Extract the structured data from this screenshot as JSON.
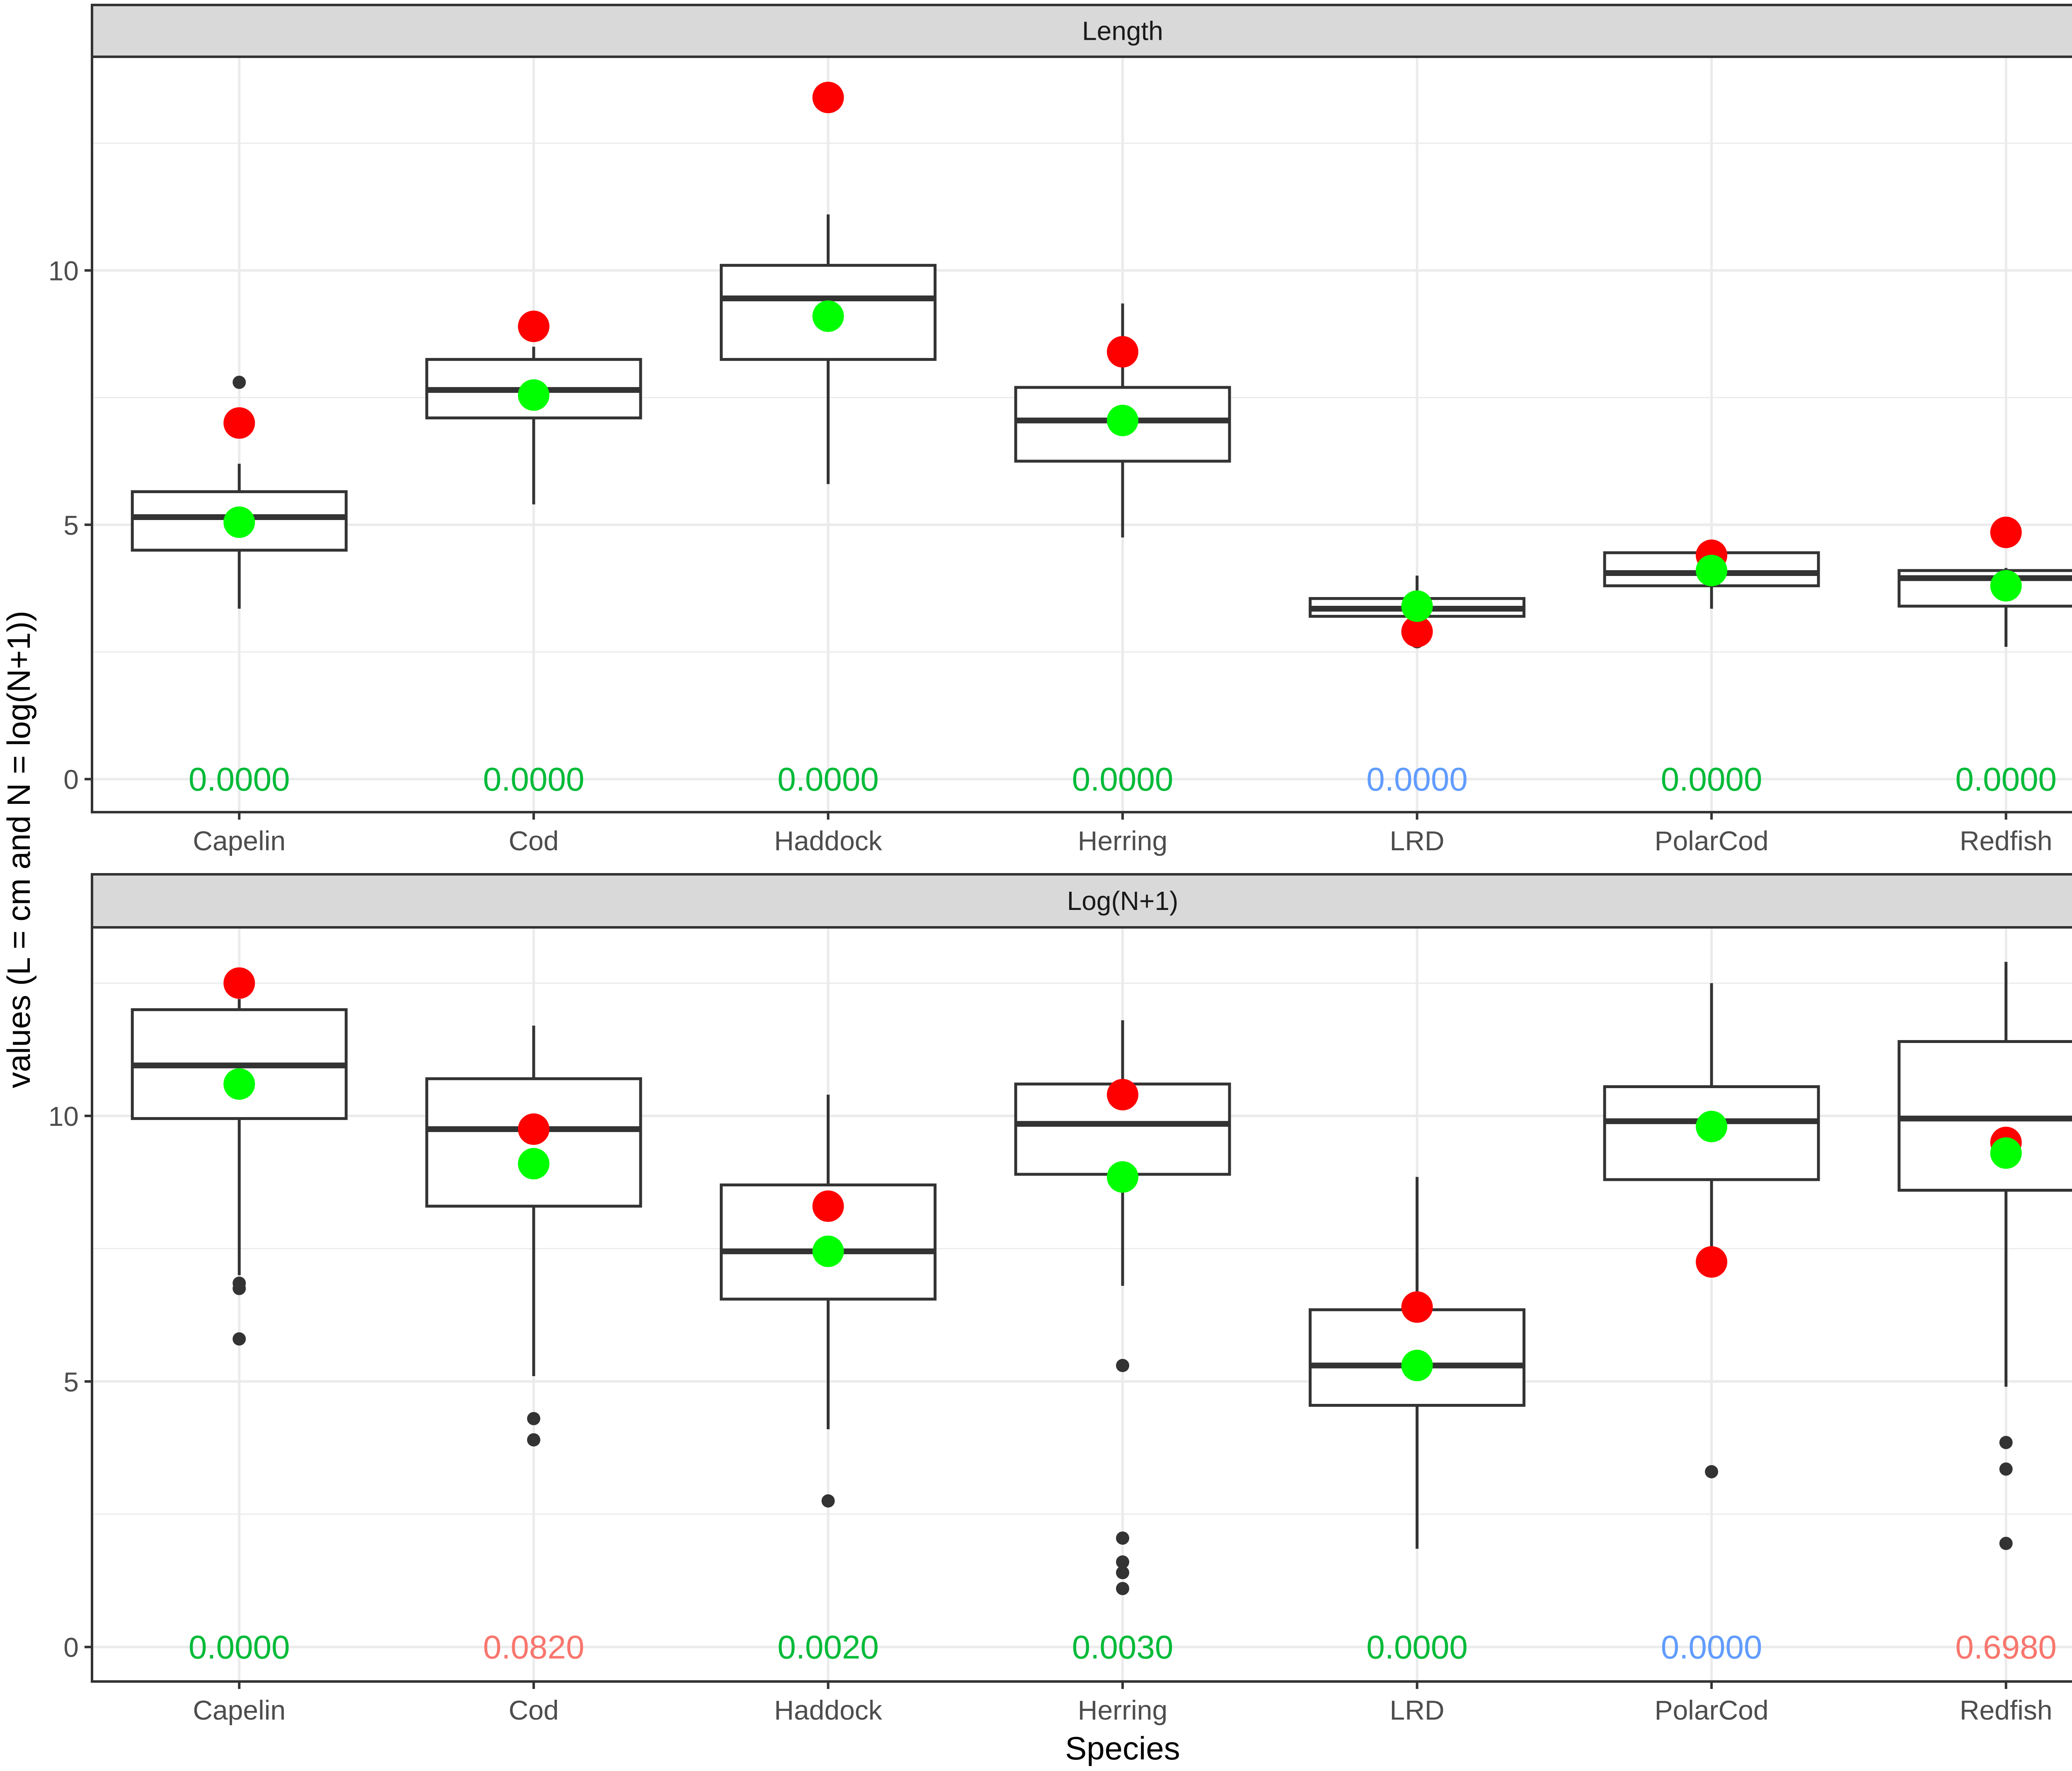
{
  "chart_data": {
    "type": "boxplot",
    "xlabel": "Species",
    "ylabel": "values (L = cm and N = log(N+1))",
    "categories": [
      "Capelin",
      "Cod",
      "Haddock",
      "Herring",
      "LRD",
      "PolarCod",
      "Redfish"
    ],
    "colors": {
      "red_point": "#ff0000",
      "green_point": "#00ff00",
      "box": "#333333",
      "strip": "#d9d9d9",
      "grid": "#ebebeb"
    },
    "panels": [
      {
        "strip": "Length",
        "yticks": [
          0,
          5,
          10
        ],
        "ylim": [
          -0.65,
          14.2
        ],
        "boxes": [
          {
            "category": "Capelin",
            "whisker_low": 3.35,
            "q1": 4.5,
            "median": 5.15,
            "q3": 5.65,
            "whisker_high": 6.2,
            "outliers": [
              7.8
            ]
          },
          {
            "category": "Cod",
            "whisker_low": 5.4,
            "q1": 7.1,
            "median": 7.65,
            "q3": 8.25,
            "whisker_high": 8.5,
            "outliers": []
          },
          {
            "category": "Haddock",
            "whisker_low": 5.8,
            "q1": 8.25,
            "median": 9.45,
            "q3": 10.1,
            "whisker_high": 11.1,
            "outliers": []
          },
          {
            "category": "Herring",
            "whisker_low": 4.75,
            "q1": 6.25,
            "median": 7.05,
            "q3": 7.7,
            "whisker_high": 9.35,
            "outliers": []
          },
          {
            "category": "LRD",
            "whisker_low": 2.85,
            "q1": 3.2,
            "median": 3.35,
            "q3": 3.55,
            "whisker_high": 4.0,
            "outliers": [
              2.7
            ]
          },
          {
            "category": "PolarCod",
            "whisker_low": 3.35,
            "q1": 3.8,
            "median": 4.05,
            "q3": 4.45,
            "whisker_high": 4.7,
            "outliers": []
          },
          {
            "category": "Redfish",
            "whisker_low": 2.6,
            "q1": 3.4,
            "median": 3.95,
            "q3": 4.1,
            "whisker_high": 4.15,
            "outliers": []
          }
        ],
        "red_points": [
          7.0,
          8.9,
          13.4,
          8.4,
          2.9,
          4.4,
          4.85
        ],
        "green_points": [
          5.05,
          7.55,
          9.1,
          7.05,
          3.4,
          4.1,
          3.8
        ],
        "pvalues": [
          {
            "text": "0.0000",
            "color": "#00ba38"
          },
          {
            "text": "0.0000",
            "color": "#00ba38"
          },
          {
            "text": "0.0000",
            "color": "#00ba38"
          },
          {
            "text": "0.0000",
            "color": "#00ba38"
          },
          {
            "text": "0.0000",
            "color": "#619cff"
          },
          {
            "text": "0.0000",
            "color": "#00ba38"
          },
          {
            "text": "0.0000",
            "color": "#00ba38"
          }
        ]
      },
      {
        "strip": "Log(N+1)",
        "yticks": [
          0,
          5,
          10
        ],
        "ylim": [
          -0.65,
          13.55
        ],
        "boxes": [
          {
            "category": "Capelin",
            "whisker_low": 7.0,
            "q1": 9.95,
            "median": 10.95,
            "q3": 12.0,
            "whisker_high": 12.2,
            "outliers": [
              6.85,
              6.75,
              5.8
            ]
          },
          {
            "category": "Cod",
            "whisker_low": 5.1,
            "q1": 8.3,
            "median": 9.75,
            "q3": 10.7,
            "whisker_high": 11.7,
            "outliers": [
              4.3,
              3.9
            ]
          },
          {
            "category": "Haddock",
            "whisker_low": 4.1,
            "q1": 6.55,
            "median": 7.45,
            "q3": 8.7,
            "whisker_high": 10.4,
            "outliers": [
              2.75
            ]
          },
          {
            "category": "Herring",
            "whisker_low": 6.8,
            "q1": 8.9,
            "median": 9.85,
            "q3": 10.6,
            "whisker_high": 11.8,
            "outliers": [
              5.3,
              2.05,
              1.6,
              1.4,
              1.1
            ]
          },
          {
            "category": "LRD",
            "whisker_low": 1.85,
            "q1": 4.55,
            "median": 5.3,
            "q3": 6.35,
            "whisker_high": 8.85,
            "outliers": []
          },
          {
            "category": "PolarCod",
            "whisker_low": 7.0,
            "q1": 8.8,
            "median": 9.9,
            "q3": 10.55,
            "whisker_high": 12.5,
            "outliers": [
              3.3
            ]
          },
          {
            "category": "Redfish",
            "whisker_low": 4.9,
            "q1": 8.6,
            "median": 9.95,
            "q3": 11.4,
            "whisker_high": 12.9,
            "outliers": [
              3.85,
              3.35,
              1.95
            ]
          }
        ],
        "red_points": [
          12.5,
          9.75,
          8.3,
          10.4,
          6.4,
          7.25,
          9.5
        ],
        "green_points": [
          10.6,
          9.1,
          7.45,
          8.85,
          5.3,
          9.8,
          9.3
        ],
        "pvalues": [
          {
            "text": "0.0000",
            "color": "#00ba38"
          },
          {
            "text": "0.0820",
            "color": "#f8766d"
          },
          {
            "text": "0.0020",
            "color": "#00ba38"
          },
          {
            "text": "0.0030",
            "color": "#00ba38"
          },
          {
            "text": "0.0000",
            "color": "#00ba38"
          },
          {
            "text": "0.0000",
            "color": "#619cff"
          },
          {
            "text": "0.6980",
            "color": "#f8766d"
          }
        ]
      }
    ]
  }
}
